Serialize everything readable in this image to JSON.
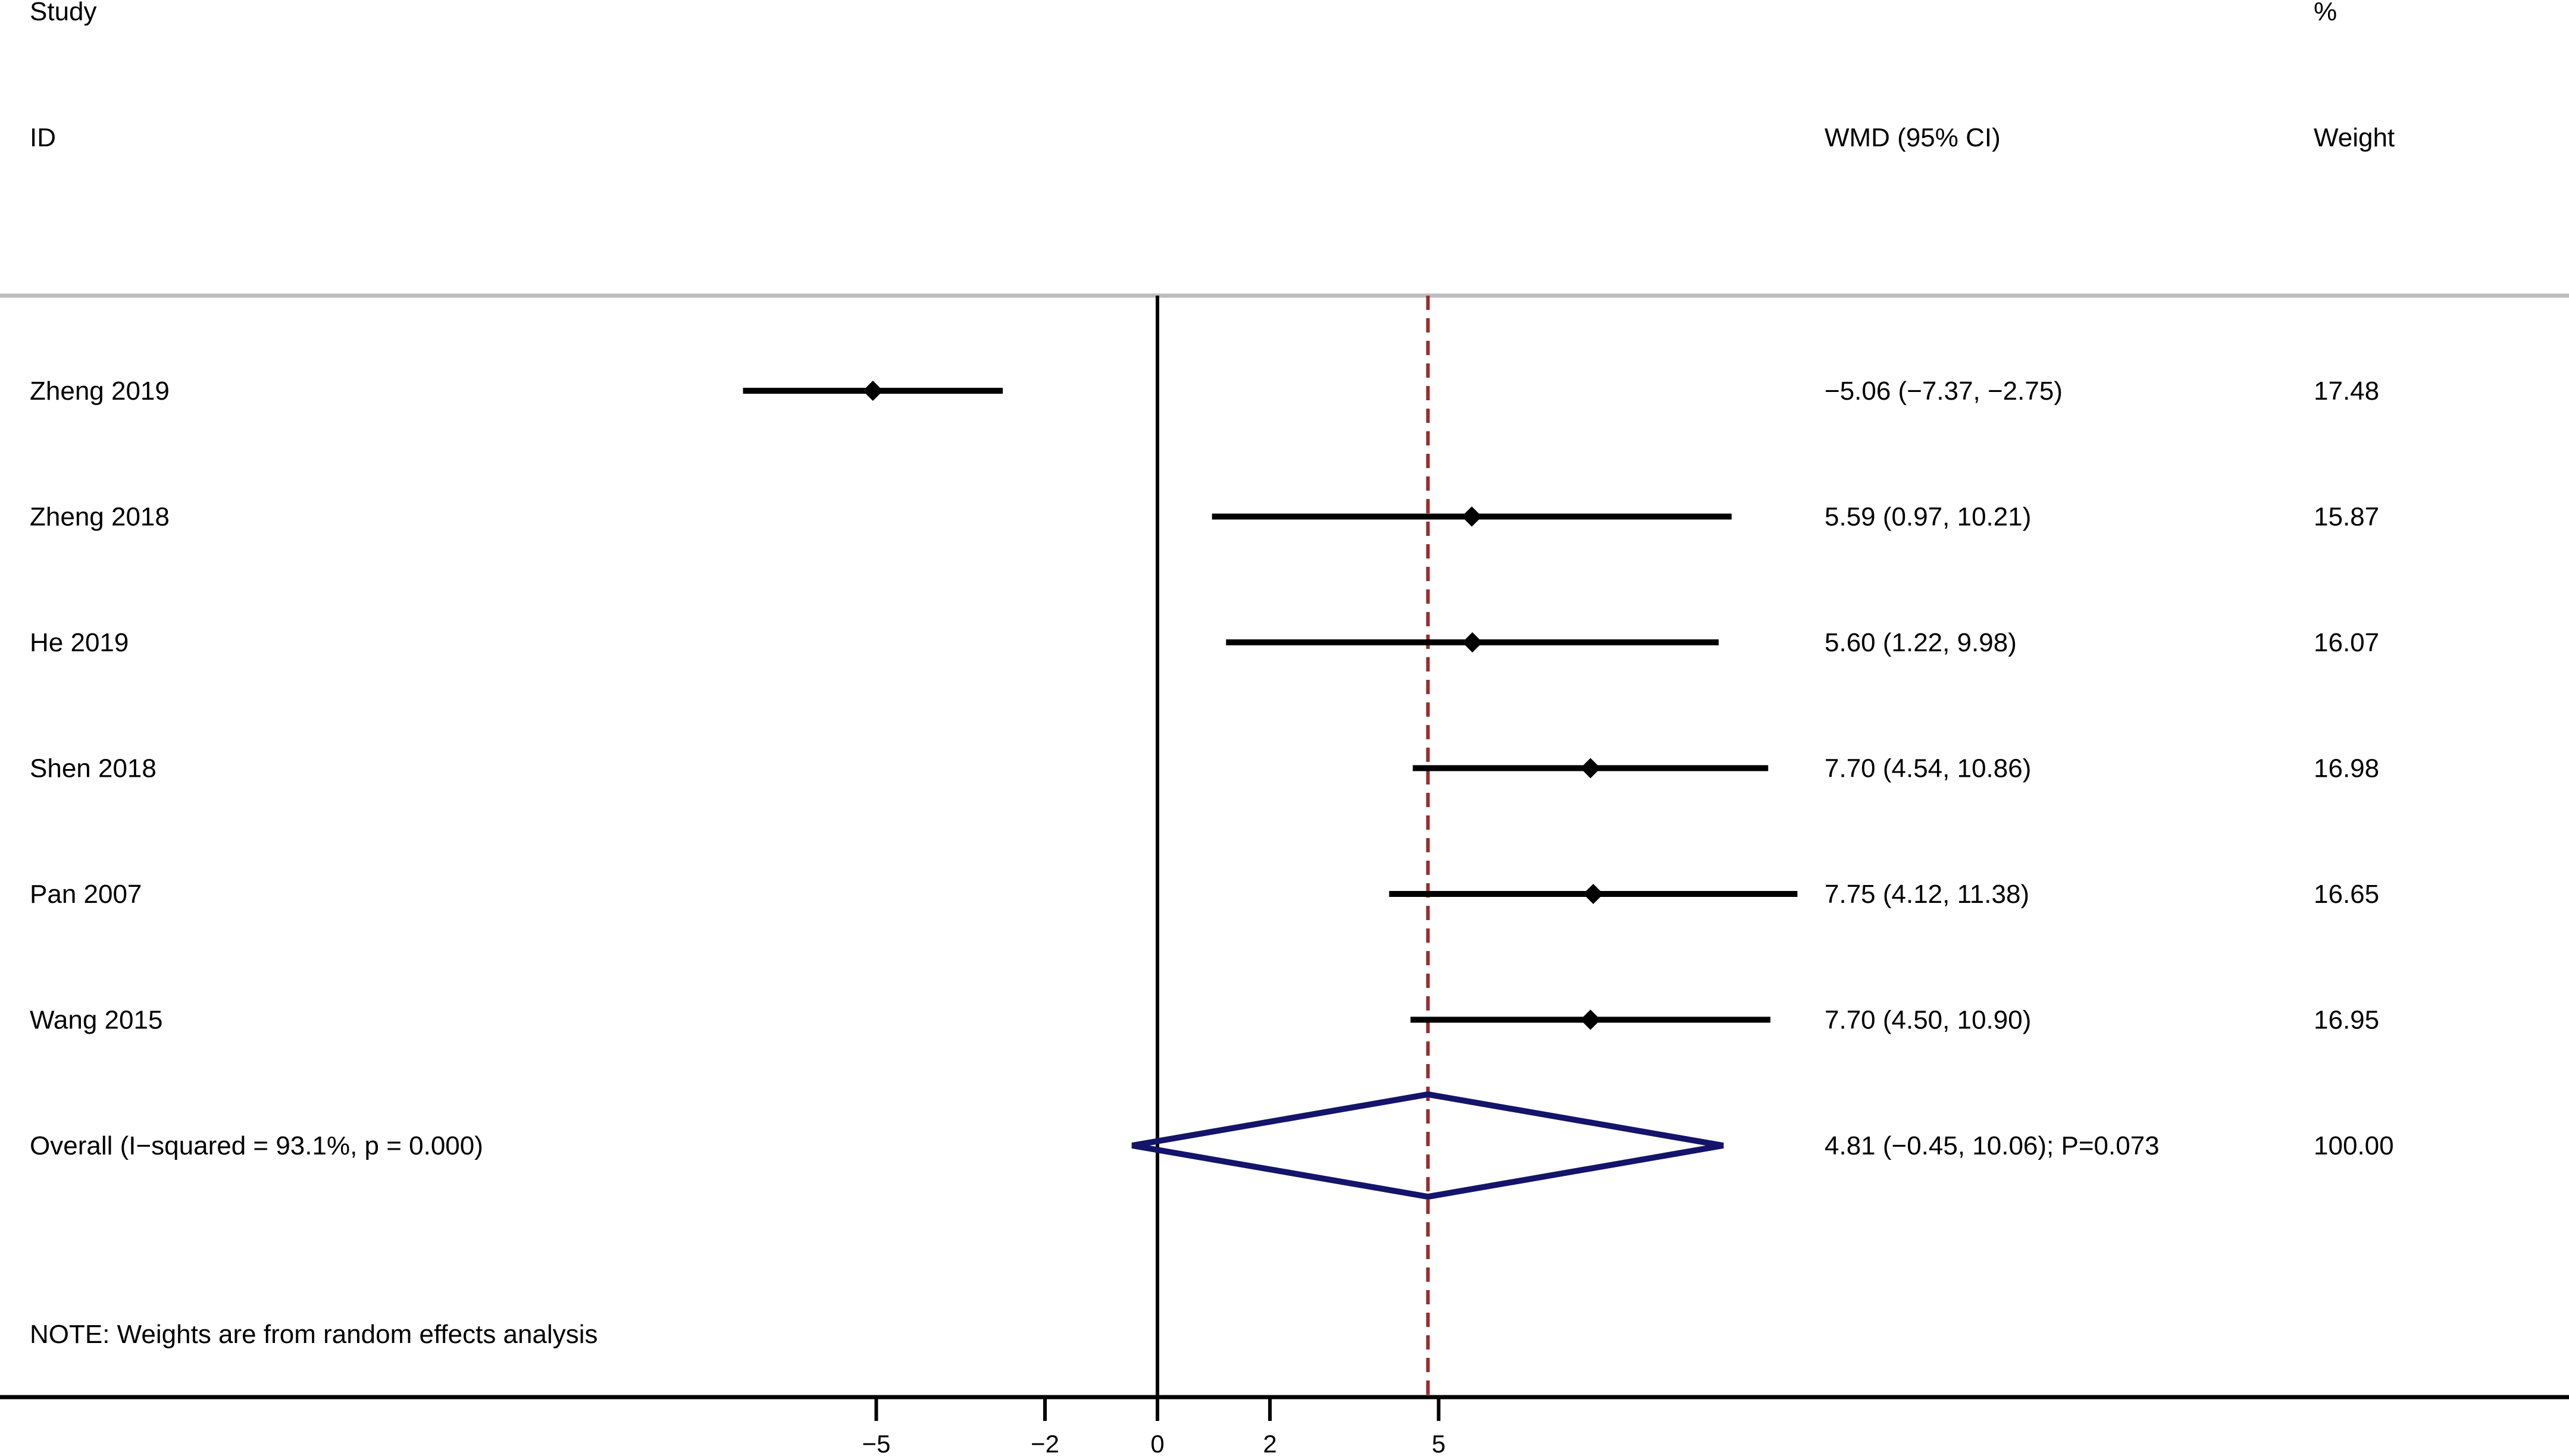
{
  "headers": {
    "study_line1": "Study",
    "study_line2": "ID",
    "effect": "WMD (95% CI)",
    "weight_line1": "%",
    "weight_line2": "Weight"
  },
  "note": "NOTE: Weights are from random effects analysis",
  "colors": {
    "line": "#000000",
    "divider": "#bdbdbd",
    "overall_diamond": "#14146b",
    "overall_dashed_line": "#9b2c2c"
  },
  "chart_data": {
    "type": "forest",
    "xlim": [
      -7.37,
      11.38
    ],
    "xticks": [
      -5,
      -2,
      0,
      2,
      5
    ],
    "xtick_labels": [
      "−5",
      "−2",
      "0",
      "2",
      "5"
    ],
    "null_line": 0,
    "studies": [
      {
        "name": "Zheng 2019",
        "estimate": -5.06,
        "lower": -7.37,
        "upper": -2.75,
        "label": "−5.06 (−7.37, −2.75)",
        "weight": "17.48"
      },
      {
        "name": "Zheng 2018",
        "estimate": 5.59,
        "lower": 0.97,
        "upper": 10.21,
        "label": "5.59 (0.97, 10.21)",
        "weight": "15.87"
      },
      {
        "name": "He 2019",
        "estimate": 5.6,
        "lower": 1.22,
        "upper": 9.98,
        "label": "5.60 (1.22, 9.98)",
        "weight": "16.07"
      },
      {
        "name": "Shen 2018",
        "estimate": 7.7,
        "lower": 4.54,
        "upper": 10.86,
        "label": "7.70 (4.54, 10.86)",
        "weight": "16.98"
      },
      {
        "name": "Pan 2007",
        "estimate": 7.75,
        "lower": 4.12,
        "upper": 11.38,
        "label": "7.75 (4.12, 11.38)",
        "weight": "16.65"
      },
      {
        "name": "Wang 2015",
        "estimate": 7.7,
        "lower": 4.5,
        "upper": 10.9,
        "label": "7.70 (4.50, 10.90)",
        "weight": "16.95"
      }
    ],
    "overall": {
      "name": "Overall  (I−squared = 93.1%, p = 0.000)",
      "estimate": 4.81,
      "lower": -0.45,
      "upper": 10.06,
      "label": "4.81 (−0.45, 10.06); P=0.073",
      "weight": "100.00"
    }
  }
}
